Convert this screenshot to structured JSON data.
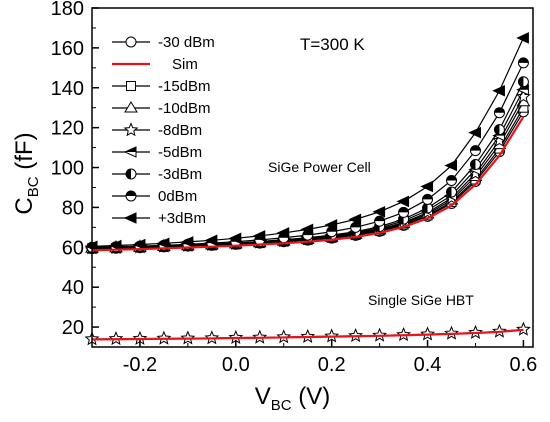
{
  "chart_data": {
    "type": "line",
    "xlabel_main": "V",
    "xlabel_sub": "BC",
    "xlabel_unit": " (V)",
    "ylabel_main": "C",
    "ylabel_sub": "BC",
    "ylabel_unit": " (fF)",
    "xlim": [
      -0.3,
      0.62
    ],
    "ylim": [
      10,
      180
    ],
    "x_ticks": [
      -0.2,
      0.0,
      0.2,
      0.4,
      0.6
    ],
    "x_tick_labels": [
      "-0.2",
      "0.0",
      "0.2",
      "0.4",
      "0.6"
    ],
    "y_ticks": [
      20,
      40,
      60,
      80,
      100,
      120,
      140,
      160,
      180
    ],
    "y_tick_labels": [
      "20",
      "40",
      "60",
      "80",
      "100",
      "120",
      "140",
      "160",
      "180"
    ],
    "x": [
      -0.3,
      -0.25,
      -0.2,
      -0.15,
      -0.1,
      -0.05,
      0.0,
      0.05,
      0.1,
      0.15,
      0.2,
      0.25,
      0.3,
      0.35,
      0.4,
      0.45,
      0.5,
      0.55,
      0.6
    ],
    "legend_placement": "top-left",
    "annotations": {
      "temperature": "T=300 K",
      "power_cell": "SiGe Power Cell",
      "single_hbt": "Single SiGe HBT"
    },
    "series": [
      {
        "name": "-30 dBm",
        "marker": "circle-open",
        "values": [
          59.3,
          59.5,
          59.8,
          60.2,
          60.6,
          61.0,
          61.5,
          62.1,
          62.8,
          63.6,
          64.6,
          66.0,
          68.0,
          71.0,
          75.5,
          82.0,
          93.0,
          108.0,
          128.0
        ]
      },
      {
        "name": "Sim",
        "marker": "none",
        "color": "#e8141b",
        "values": [
          58.5,
          58.8,
          59.1,
          59.5,
          59.9,
          60.3,
          60.8,
          61.4,
          62.0,
          62.8,
          63.8,
          65.2,
          67.2,
          70.2,
          74.5,
          81.0,
          91.5,
          106.0,
          125.5
        ]
      },
      {
        "name": "-15dBm",
        "marker": "square-open",
        "values": [
          59.4,
          59.6,
          59.9,
          60.3,
          60.7,
          61.1,
          61.6,
          62.2,
          62.9,
          63.8,
          64.8,
          66.2,
          68.3,
          71.4,
          76.0,
          82.7,
          94.0,
          109.5,
          130.0
        ]
      },
      {
        "name": "-10dBm",
        "marker": "triangle-up-open",
        "values": [
          59.5,
          59.7,
          60.0,
          60.4,
          60.8,
          61.2,
          61.7,
          62.3,
          63.1,
          64.0,
          65.0,
          66.5,
          68.7,
          71.9,
          76.7,
          83.7,
          95.5,
          111.5,
          133.0
        ]
      },
      {
        "name": "-8dBm",
        "marker": "star-open",
        "values": [
          59.6,
          59.8,
          60.1,
          60.5,
          60.9,
          61.3,
          61.8,
          62.5,
          63.3,
          64.2,
          65.3,
          66.8,
          69.1,
          72.4,
          77.4,
          84.7,
          97.0,
          113.5,
          135.5
        ]
      },
      {
        "name": "-5dBm",
        "marker": "triangle-left-half",
        "values": [
          59.7,
          59.9,
          60.2,
          60.6,
          61.0,
          61.5,
          62.0,
          62.7,
          63.5,
          64.5,
          65.7,
          67.3,
          69.7,
          73.2,
          78.5,
          86.0,
          99.0,
          116.0,
          139.0
        ]
      },
      {
        "name": "-3dBm",
        "marker": "circle-half-left",
        "values": [
          59.8,
          60.0,
          60.3,
          60.7,
          61.1,
          61.6,
          62.2,
          62.9,
          63.8,
          64.8,
          66.1,
          67.8,
          70.4,
          74.1,
          79.7,
          87.7,
          101.5,
          119.0,
          143.0
        ]
      },
      {
        "name": "0dBm",
        "marker": "circle-half-top",
        "values": [
          60.0,
          60.3,
          60.6,
          61.0,
          61.5,
          62.1,
          62.8,
          63.7,
          64.8,
          66.1,
          67.8,
          70.0,
          73.1,
          77.5,
          84.0,
          93.5,
          108.5,
          127.5,
          152.5
        ]
      },
      {
        "name": "+3dBm",
        "marker": "triangle-left-filled",
        "values": [
          60.5,
          60.9,
          61.4,
          62.0,
          62.7,
          63.5,
          64.5,
          65.7,
          67.2,
          69.0,
          71.2,
          74.0,
          77.8,
          83.0,
          90.5,
          101.0,
          117.5,
          138.5,
          165.0
        ]
      },
      {
        "name": "",
        "marker": "star-open",
        "values": [
          14.0,
          14.1,
          14.2,
          14.3,
          14.4,
          14.5,
          14.7,
          14.8,
          15.0,
          15.2,
          15.4,
          15.6,
          15.8,
          16.1,
          16.4,
          16.8,
          17.2,
          17.8,
          18.8
        ]
      },
      {
        "name": "",
        "marker": "none",
        "color": "#e8141b",
        "values": [
          13.8,
          13.9,
          14.0,
          14.1,
          14.2,
          14.3,
          14.5,
          14.6,
          14.8,
          15.0,
          15.2,
          15.4,
          15.6,
          15.9,
          16.2,
          16.6,
          17.0,
          17.6,
          18.6
        ]
      }
    ]
  }
}
